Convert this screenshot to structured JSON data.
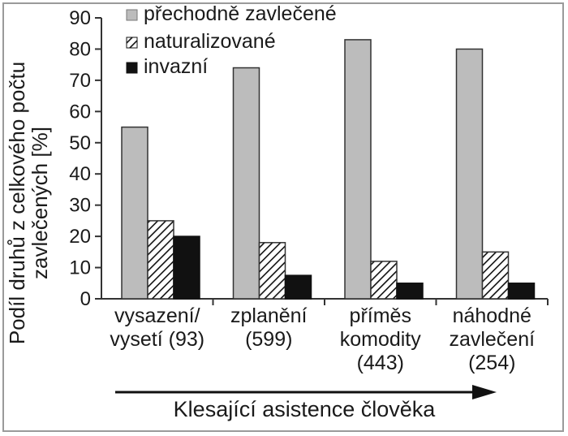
{
  "chart_data": {
    "type": "bar",
    "categories": [
      [
        "vysazení/",
        "vysetí (93)"
      ],
      [
        "zplanění",
        "(599)"
      ],
      [
        "příměs",
        "komodity",
        "(443)"
      ],
      [
        "náhodné",
        "zavlečení",
        "(254)"
      ]
    ],
    "series": [
      {
        "name": "přechodně zavlečené",
        "values": [
          55,
          74,
          83,
          80
        ],
        "color": "#bcbcbc",
        "pattern": "solid-gray"
      },
      {
        "name": "naturalizované",
        "values": [
          25,
          18,
          12,
          15
        ],
        "color": "#ffffff",
        "pattern": "hatched"
      },
      {
        "name": "invazní",
        "values": [
          20,
          7.5,
          5,
          5
        ],
        "color": "#111111",
        "pattern": "solid-black"
      }
    ],
    "ylabel": [
      "Podíl druhů z celkového počtu",
      "zavlečených [%]"
    ],
    "xlabel": "Klesající asistence člověka",
    "ylim": [
      0,
      90
    ],
    "yticks": [
      0,
      10,
      20,
      30,
      40,
      50,
      60,
      70,
      80,
      90
    ],
    "legend_position": "top-left"
  }
}
